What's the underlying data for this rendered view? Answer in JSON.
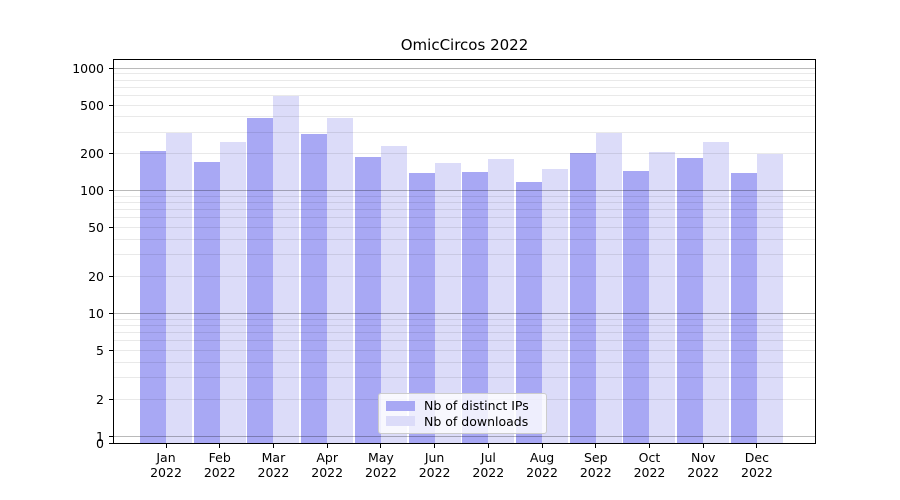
{
  "chart_data": {
    "type": "bar",
    "title": "OmicCircos 2022",
    "y_scale": "symlog",
    "ylim": [
      0,
      1150
    ],
    "y_ticks": [
      0,
      1,
      2,
      5,
      10,
      20,
      50,
      100,
      200,
      500,
      1000
    ],
    "grid": "horizontal major (1,10,100,1000) dark + minor light gridlines, drawn over bars",
    "legend_position": "lower center",
    "categories": [
      "Jan 2022",
      "Feb 2022",
      "Mar 2022",
      "Apr 2022",
      "May 2022",
      "Jun 2022",
      "Jul 2022",
      "Aug 2022",
      "Sep 2022",
      "Oct 2022",
      "Nov 2022",
      "Dec 2022"
    ],
    "series": [
      {
        "name": "Nb of distinct IPs",
        "color": "#a8a8f4",
        "values": [
          210,
          172,
          395,
          290,
          190,
          139,
          143,
          118,
          204,
          146,
          184,
          140
        ]
      },
      {
        "name": "Nb of downloads",
        "color": "#dcdcf9",
        "values": [
          296,
          249,
          595,
          395,
          233,
          167,
          183,
          150,
          294,
          206,
          248,
          198
        ]
      }
    ],
    "colors": {
      "spine": "#000000",
      "grid_major": "rgba(0,0,0,0.27)",
      "grid_minor": "rgba(0,0,0,0.085)",
      "text": "#000000",
      "legend_border": "#cccccc"
    }
  }
}
